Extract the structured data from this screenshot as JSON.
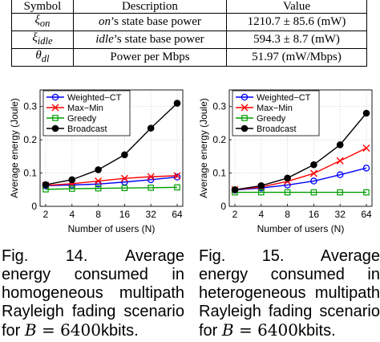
{
  "table": {
    "headers": [
      "Symbol",
      "Description",
      "Value"
    ],
    "rows": [
      {
        "symbol": "ξ",
        "subscript": "on",
        "description_emph": "on",
        "description_rest": "’s state base power",
        "value": "1210.7 ± 85.6 (mW)"
      },
      {
        "symbol": "ξ",
        "subscript": "idle",
        "description_emph": "idle",
        "description_rest": "’s state base power",
        "value": "594.3 ± 8.7 (mW)"
      },
      {
        "symbol": "θ",
        "subscript": "dl",
        "description_emph": "",
        "description_rest": "Power per Mbps",
        "value": "51.97 (mW/Mbps)"
      }
    ]
  },
  "chart_data": [
    {
      "type": "line",
      "xlabel": "Number of users (N)",
      "ylabel": "Average energy (Joule)",
      "categories": [
        "2",
        "4",
        "8",
        "16",
        "32",
        "64"
      ],
      "ylim": [
        0,
        0.35
      ],
      "yticks": [
        "0",
        "0.1",
        "0.2",
        "0.3"
      ],
      "grid": true,
      "legend": "top-left",
      "series": [
        {
          "name": "Weighted−CT",
          "color": "#0000ff",
          "marker": "circle",
          "values": [
            0.062,
            0.064,
            0.067,
            0.073,
            0.08,
            0.088
          ]
        },
        {
          "name": "Max−Min",
          "color": "#ff0000",
          "marker": "x",
          "values": [
            0.063,
            0.068,
            0.076,
            0.084,
            0.089,
            0.092
          ]
        },
        {
          "name": "Greedy",
          "color": "#00a000",
          "marker": "square",
          "values": [
            0.051,
            0.053,
            0.054,
            0.055,
            0.056,
            0.057
          ]
        },
        {
          "name": "Broadcast",
          "color": "#000000",
          "marker": "filled-circle",
          "values": [
            0.065,
            0.08,
            0.11,
            0.155,
            0.235,
            0.31
          ]
        }
      ]
    },
    {
      "type": "line",
      "xlabel": "Number of users (N)",
      "ylabel": "Average energy (Joule)",
      "categories": [
        "2",
        "4",
        "8",
        "16",
        "32",
        "64"
      ],
      "ylim": [
        0,
        0.35
      ],
      "yticks": [
        "0",
        "0.1",
        "0.2",
        "0.3"
      ],
      "grid": true,
      "legend": "top-left",
      "series": [
        {
          "name": "Weighted−CT",
          "color": "#0000ff",
          "marker": "circle",
          "values": [
            0.049,
            0.055,
            0.064,
            0.076,
            0.095,
            0.115
          ]
        },
        {
          "name": "Max−Min",
          "color": "#ff0000",
          "marker": "x",
          "values": [
            0.05,
            0.058,
            0.075,
            0.099,
            0.137,
            0.175
          ]
        },
        {
          "name": "Greedy",
          "color": "#00a000",
          "marker": "square",
          "values": [
            0.042,
            0.042,
            0.042,
            0.042,
            0.042,
            0.042
          ]
        },
        {
          "name": "Broadcast",
          "color": "#000000",
          "marker": "filled-circle",
          "values": [
            0.05,
            0.062,
            0.085,
            0.125,
            0.185,
            0.28
          ]
        }
      ]
    }
  ],
  "captions": [
    {
      "fig": "Fig.",
      "num": "14.",
      "lead": "Average",
      "text": "energy consumed in homogeneous multipath Rayleigh fading scenario for",
      "math_var": "B",
      "math_eq": " = 6400",
      "unit": "kbits."
    },
    {
      "fig": "Fig.",
      "num": "15.",
      "lead": "Average",
      "text": "energy consumed in heterogeneous multipath Rayleigh fading scenario for",
      "math_var": "B",
      "math_eq": " = 6400",
      "unit": "kbits."
    }
  ]
}
